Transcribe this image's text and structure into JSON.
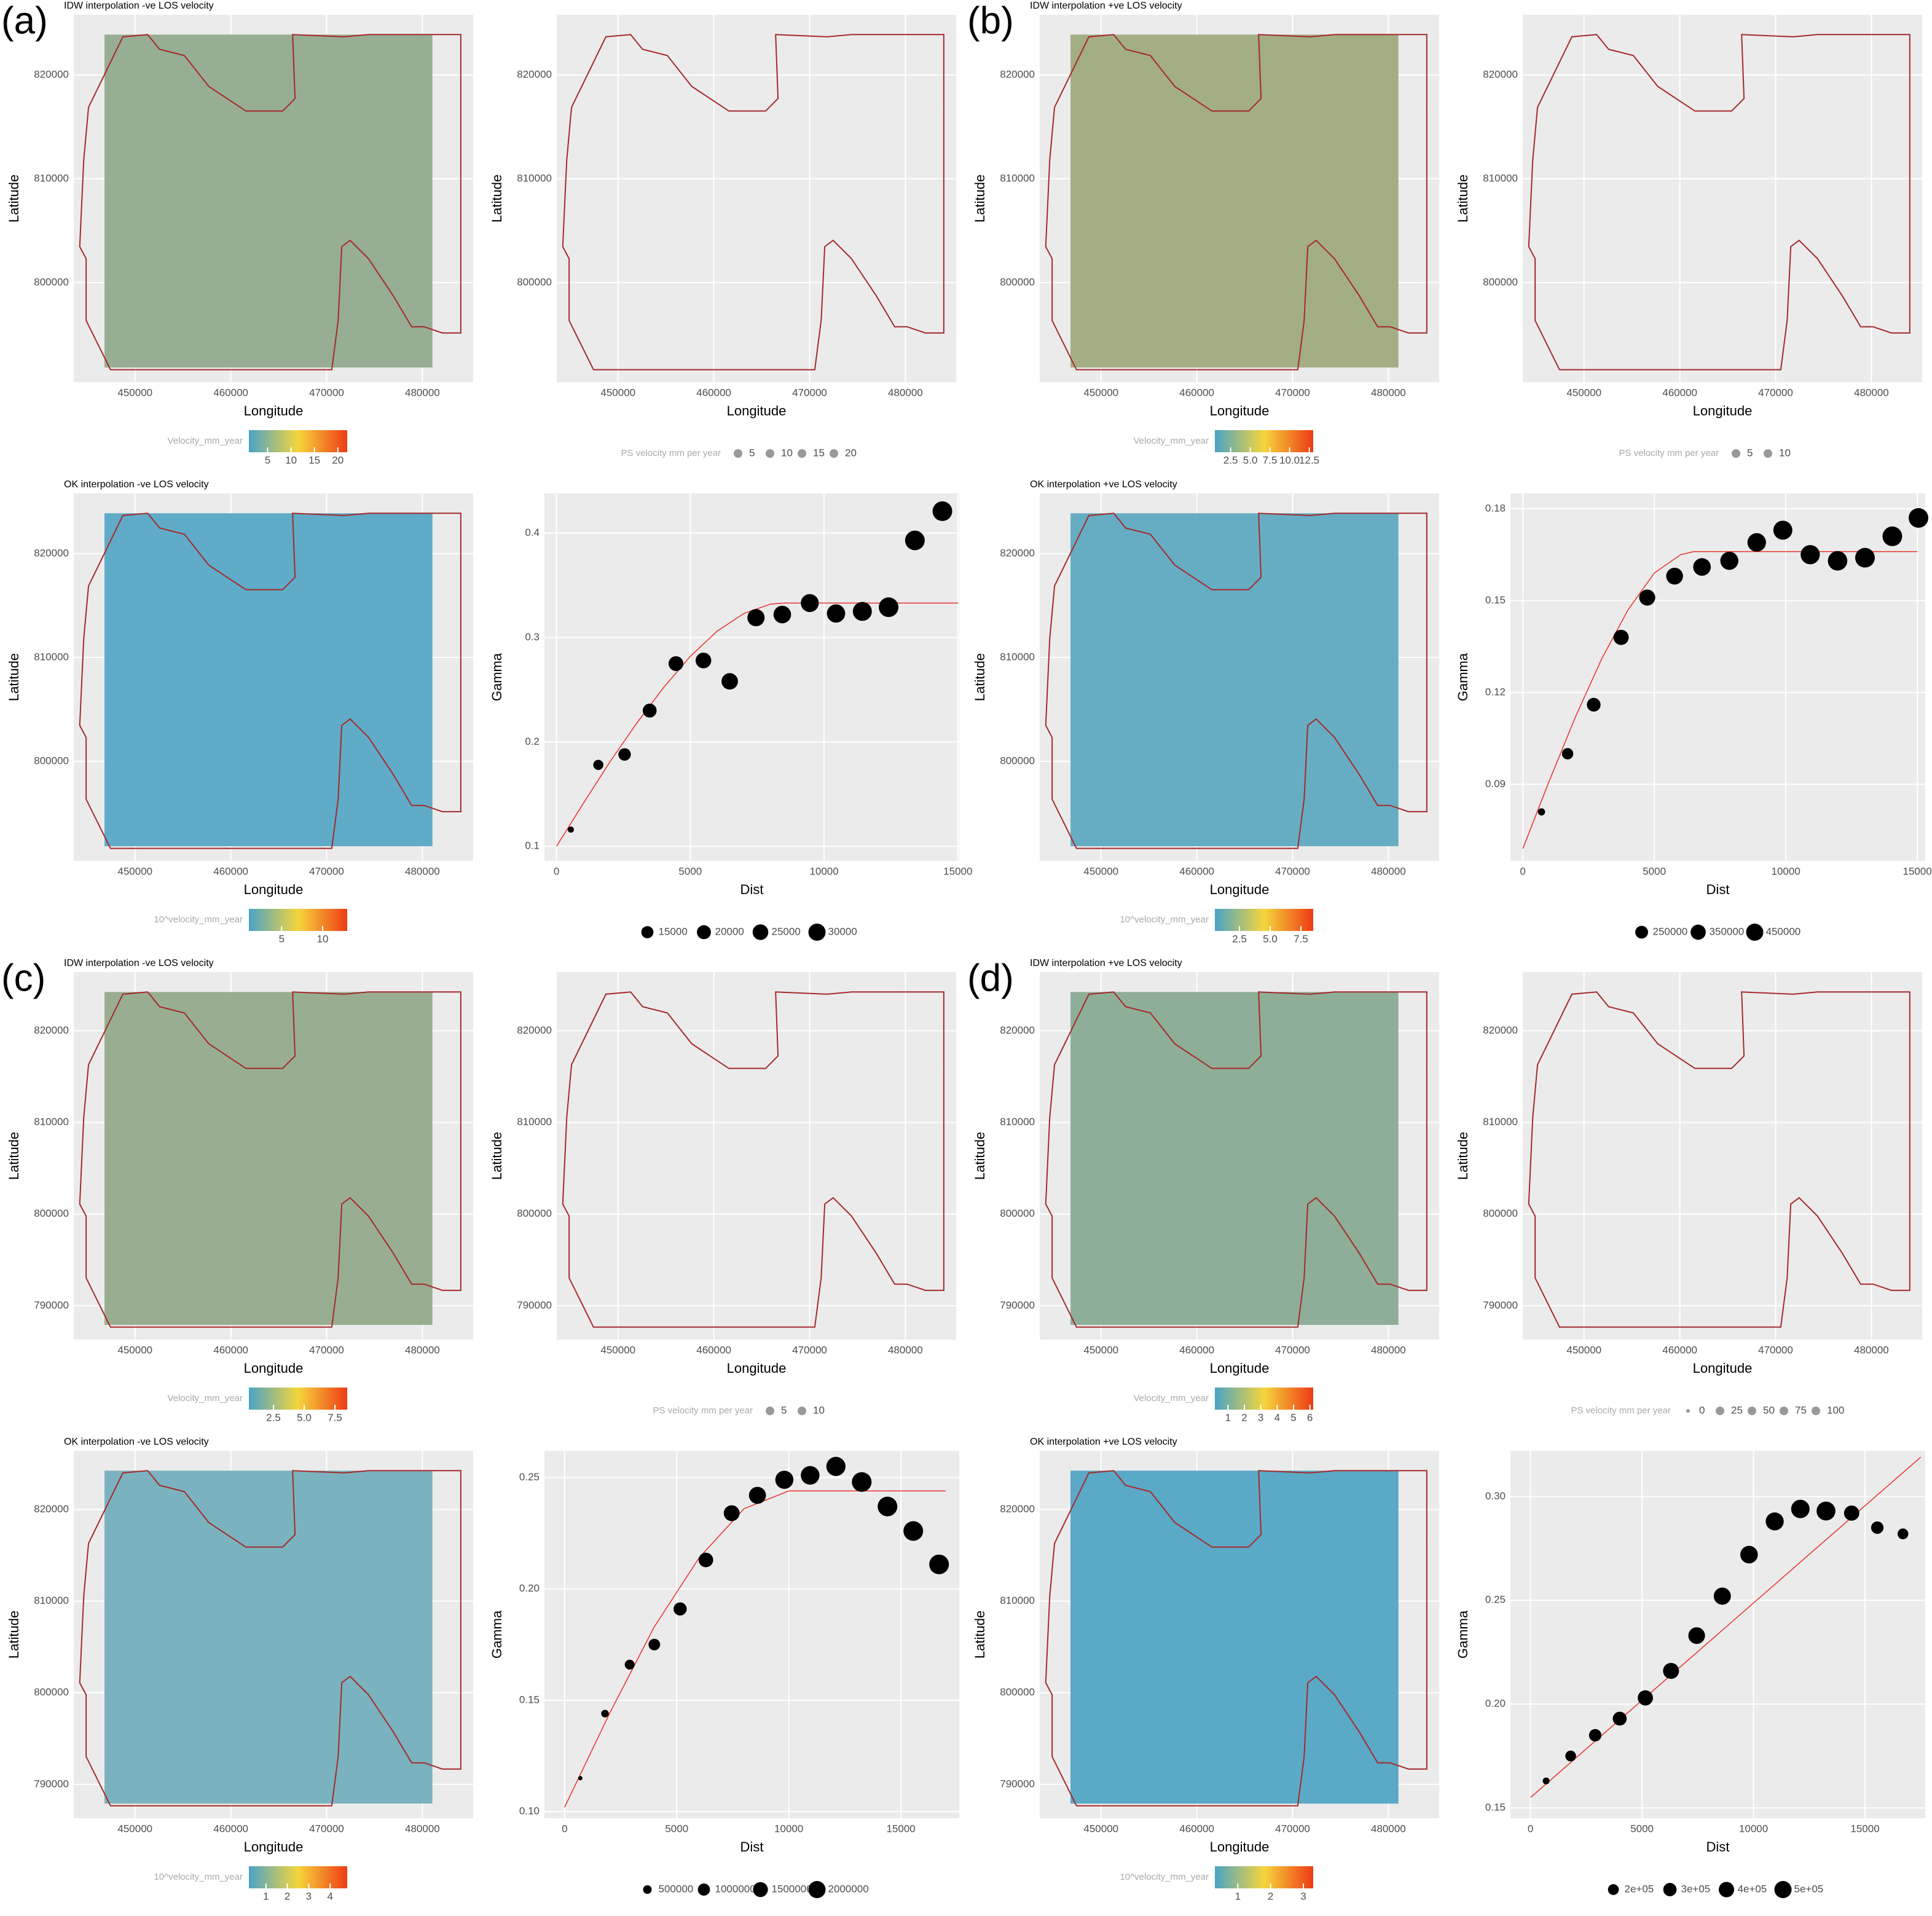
{
  "panel_labels": [
    "(a)",
    "(b)",
    "(c)",
    "(d)"
  ],
  "chart_data": [
    {
      "type": "map",
      "title": "IDW interpolation -ve LOS velocity",
      "x_label": "Longitude",
      "y_label": "Latitude",
      "xlim": [
        443600,
        485300
      ],
      "ylim": [
        790400,
        825800
      ],
      "xticks": [
        450000,
        460000,
        470000,
        480000
      ],
      "yticks": [
        800000,
        810000,
        820000
      ],
      "surface_color": "#97ae94",
      "boundary_color": "#a52a2a",
      "colorbar": {
        "title": "Velocity_mm_year",
        "lim": [
          1,
          22
        ],
        "ticks": [
          5,
          10,
          15,
          20
        ],
        "colors": [
          "#4aa3c8",
          "#f5d63c",
          "#ee3b14"
        ]
      }
    },
    {
      "type": "points_map",
      "x_label": "Longitude",
      "y_label": "Latitude",
      "xlim": [
        443600,
        485300
      ],
      "ylim": [
        790400,
        825800
      ],
      "xticks": [
        450000,
        460000,
        470000,
        480000
      ],
      "yticks": [
        800000,
        810000,
        820000
      ],
      "boundary_color": "#a52a2a",
      "size_legend": {
        "title": "PS velocity mm per year",
        "values": [
          5,
          10,
          15,
          20
        ],
        "color": "#999999"
      }
    },
    {
      "type": "map",
      "title": "OK interpolation -ve LOS velocity",
      "x_label": "Longitude",
      "y_label": "Latitude",
      "xlim": [
        443600,
        485300
      ],
      "ylim": [
        790400,
        825800
      ],
      "xticks": [
        450000,
        460000,
        470000,
        480000
      ],
      "yticks": [
        800000,
        810000,
        820000
      ],
      "surface_color": "#5fabc8",
      "boundary_color": "#a52a2a",
      "colorbar": {
        "title": "10^velocity_mm_year",
        "lim": [
          1,
          13
        ],
        "ticks": [
          5,
          10
        ],
        "colors": [
          "#4aa3c8",
          "#f5d63c",
          "#ee3b14"
        ]
      }
    },
    {
      "type": "scatter",
      "x_label": "Dist",
      "y_label": "Gamma",
      "xlim": [
        -450,
        15050
      ],
      "ylim": [
        0.086,
        0.438
      ],
      "xticks": [
        0,
        5000,
        10000,
        15000
      ],
      "yticks": [
        0.1,
        0.2,
        0.3,
        0.4
      ],
      "color": "#000000",
      "fit_color": "#e8312a",
      "x": [
        536,
        1563,
        2545,
        3482,
        4464,
        5491,
        6473,
        7455,
        8437,
        9464,
        10446,
        11429,
        12411,
        13393,
        14420
      ],
      "values": [
        0.116,
        0.178,
        0.188,
        0.23,
        0.275,
        0.278,
        0.258,
        0.319,
        0.322,
        0.333,
        0.323,
        0.325,
        0.329,
        0.393,
        0.421
      ],
      "sizes": [
        3000,
        8000,
        12000,
        15000,
        17000,
        19000,
        21000,
        23000,
        24000,
        25000,
        26000,
        28000,
        30000,
        30000,
        30000
      ],
      "fit": {
        "x": [
          0,
          1000,
          2000,
          3000,
          4000,
          5000,
          6000,
          7000,
          8000,
          8500,
          15000
        ],
        "y": [
          0.1,
          0.141,
          0.181,
          0.218,
          0.252,
          0.282,
          0.306,
          0.323,
          0.332,
          0.333,
          0.333
        ]
      },
      "size_legend": {
        "values": [
          15000,
          20000,
          25000,
          30000
        ],
        "color": "#000000"
      }
    },
    {
      "type": "map",
      "title": "IDW interpolation +ve LOS velocity",
      "x_label": "Longitude",
      "y_label": "Latitude",
      "xlim": [
        443600,
        485300
      ],
      "ylim": [
        790400,
        825800
      ],
      "xticks": [
        450000,
        460000,
        470000,
        480000
      ],
      "yticks": [
        800000,
        810000,
        820000
      ],
      "surface_color": "#a3ae85",
      "boundary_color": "#a52a2a",
      "colorbar": {
        "title": "Velocity_mm_year",
        "lim": [
          0.5,
          13
        ],
        "ticks": [
          2.5,
          {
            "value": 5,
            "label": "5.0"
          },
          7.5,
          {
            "value": 10,
            "label": "10.0"
          },
          12.5
        ],
        "colors": [
          "#4aa3c8",
          "#f5d63c",
          "#ee3b14"
        ]
      }
    },
    {
      "type": "points_map",
      "x_label": "Longitude",
      "y_label": "Latitude",
      "xlim": [
        443600,
        485300
      ],
      "ylim": [
        790400,
        825800
      ],
      "xticks": [
        450000,
        460000,
        470000,
        480000
      ],
      "yticks": [
        800000,
        810000,
        820000
      ],
      "boundary_color": "#a52a2a",
      "size_legend": {
        "title": "PS velocity mm per year",
        "values": [
          5,
          10
        ],
        "color": "#999999"
      }
    },
    {
      "type": "map",
      "title": "OK interpolation +ve LOS velocity",
      "x_label": "Longitude",
      "y_label": "Latitude",
      "xlim": [
        443600,
        485300
      ],
      "ylim": [
        790400,
        825800
      ],
      "xticks": [
        450000,
        460000,
        470000,
        480000
      ],
      "yticks": [
        800000,
        810000,
        820000
      ],
      "surface_color": "#66adc4",
      "boundary_color": "#a52a2a",
      "colorbar": {
        "title": "10^velocity_mm_year",
        "lim": [
          0.5,
          8.5
        ],
        "ticks": [
          2.5,
          {
            "value": 5,
            "label": "5.0"
          },
          7.5
        ],
        "colors": [
          "#4aa3c8",
          "#f5d63c",
          "#ee3b14"
        ]
      }
    },
    {
      "type": "scatter",
      "x_label": "Dist",
      "y_label": "Gamma",
      "xlim": [
        -470,
        15300
      ],
      "ylim": [
        0.065,
        0.185
      ],
      "xticks": [
        0,
        5000,
        10000,
        15000
      ],
      "yticks": [
        0.09,
        0.12,
        0.15,
        0.18
      ],
      "color": "#000000",
      "fit_color": "#e8312a",
      "x": [
        710,
        1703,
        2696,
        3737,
        4730,
        5771,
        6812,
        7852,
        8893,
        9886,
        10927,
        11968,
        13009,
        14049,
        15043
      ],
      "values": [
        0.081,
        0.1,
        0.116,
        0.138,
        0.151,
        0.158,
        0.161,
        0.163,
        0.169,
        0.173,
        0.165,
        0.163,
        0.164,
        0.171,
        0.177
      ],
      "sizes": [
        60000,
        150000,
        220000,
        270000,
        300000,
        330000,
        360000,
        380000,
        400000,
        420000,
        430000,
        440000,
        450000,
        450000,
        450000
      ],
      "fit": {
        "x": [
          0,
          1000,
          2000,
          3000,
          4000,
          5000,
          6000,
          6500,
          15000
        ],
        "y": [
          0.069,
          0.091,
          0.112,
          0.131,
          0.147,
          0.159,
          0.165,
          0.166,
          0.166
        ]
      },
      "size_legend": {
        "values": [
          250000,
          350000,
          450000
        ],
        "color": "#000000"
      }
    },
    {
      "type": "map",
      "title": "IDW interpolation -ve LOS velocity",
      "x_label": "Longitude",
      "y_label": "Latitude",
      "xlim": [
        443600,
        485300
      ],
      "ylim": [
        786300,
        826400
      ],
      "xticks": [
        450000,
        460000,
        470000,
        480000
      ],
      "yticks": [
        790000,
        800000,
        810000,
        820000
      ],
      "surface_color": "#99ae90",
      "boundary_color": "#a52a2a",
      "colorbar": {
        "title": "Velocity_mm_year",
        "lim": [
          0.5,
          8.5
        ],
        "ticks": [
          2.5,
          {
            "value": 5,
            "label": "5.0"
          },
          7.5
        ],
        "colors": [
          "#4aa3c8",
          "#f5d63c",
          "#ee3b14"
        ]
      }
    },
    {
      "type": "points_map",
      "x_label": "Longitude",
      "y_label": "Latitude",
      "xlim": [
        443600,
        485300
      ],
      "ylim": [
        786300,
        826400
      ],
      "xticks": [
        450000,
        460000,
        470000,
        480000
      ],
      "yticks": [
        790000,
        800000,
        810000,
        820000
      ],
      "boundary_color": "#a52a2a",
      "size_legend": {
        "title": "PS velocity mm per year",
        "values": [
          5,
          10
        ],
        "color": "#999999"
      }
    },
    {
      "type": "map",
      "title": "OK interpolation -ve LOS velocity",
      "x_label": "Longitude",
      "y_label": "Latitude",
      "xlim": [
        443600,
        485300
      ],
      "ylim": [
        786300,
        826400
      ],
      "xticks": [
        450000,
        460000,
        470000,
        480000
      ],
      "yticks": [
        790000,
        800000,
        810000,
        820000
      ],
      "surface_color": "#7ab3bf",
      "boundary_color": "#a52a2a",
      "colorbar": {
        "title": "10^velocity_mm_year",
        "lim": [
          0.2,
          4.8
        ],
        "ticks": [
          1,
          2,
          3,
          4
        ],
        "colors": [
          "#4aa3c8",
          "#f5d63c",
          "#ee3b14"
        ]
      }
    },
    {
      "type": "scatter",
      "x_label": "Dist",
      "y_label": "Gamma",
      "xlim": [
        -900,
        17600
      ],
      "ylim": [
        0.097,
        0.262
      ],
      "xticks": [
        0,
        5000,
        10000,
        15000
      ],
      "yticks": [
        {
          "value": 0.1,
          "label": "0.10"
        },
        0.15,
        {
          "value": 0.2,
          "label": "0.20"
        },
        0.25
      ],
      "color": "#000000",
      "fit_color": "#e8312a",
      "x": [
        700,
        1800,
        2900,
        4000,
        5150,
        6300,
        7450,
        8600,
        9800,
        10950,
        12100,
        13250,
        14400,
        15550,
        16700
      ],
      "values": [
        0.115,
        0.144,
        0.166,
        0.175,
        0.191,
        0.213,
        0.234,
        0.242,
        0.249,
        0.251,
        0.255,
        0.248,
        0.237,
        0.226,
        0.211
      ],
      "sizes": [
        100000,
        300000,
        500000,
        700000,
        900000,
        1100000,
        1300000,
        1500000,
        1700000,
        1800000,
        1900000,
        2000000,
        2000000,
        2000000,
        2000000
      ],
      "fit": {
        "x": [
          0,
          2000,
          4000,
          6000,
          8000,
          10000,
          17000
        ],
        "y": [
          0.102,
          0.144,
          0.183,
          0.214,
          0.236,
          0.244,
          0.244
        ]
      },
      "size_legend": {
        "values": [
          500000,
          1000000,
          1500000,
          2000000
        ],
        "color": "#000000"
      }
    },
    {
      "type": "map",
      "title": "IDW interpolation +ve LOS velocity",
      "x_label": "Longitude",
      "y_label": "Latitude",
      "xlim": [
        443600,
        485300
      ],
      "ylim": [
        786300,
        826400
      ],
      "xticks": [
        450000,
        460000,
        470000,
        480000
      ],
      "yticks": [
        790000,
        800000,
        810000,
        820000
      ],
      "surface_color": "#8fae98",
      "boundary_color": "#a52a2a",
      "colorbar": {
        "title": "Velocity_mm_year",
        "lim": [
          0.2,
          6.2
        ],
        "ticks": [
          1,
          2,
          3,
          4,
          5,
          6
        ],
        "colors": [
          "#4aa3c8",
          "#f5d63c",
          "#ee3b14"
        ]
      }
    },
    {
      "type": "points_map",
      "x_label": "Longitude",
      "y_label": "Latitude",
      "xlim": [
        443600,
        485300
      ],
      "ylim": [
        786300,
        826400
      ],
      "xticks": [
        450000,
        460000,
        470000,
        480000
      ],
      "yticks": [
        790000,
        800000,
        810000,
        820000
      ],
      "boundary_color": "#a52a2a",
      "size_legend": {
        "title": "PS velocity mm per year",
        "values": [
          0,
          25,
          50,
          75,
          100
        ],
        "color": "#999999"
      }
    },
    {
      "type": "map",
      "title": "OK interpolation +ve LOS velocity",
      "x_label": "Longitude",
      "y_label": "Latitude",
      "xlim": [
        443600,
        485300
      ],
      "ylim": [
        786300,
        826400
      ],
      "xticks": [
        450000,
        460000,
        470000,
        480000
      ],
      "yticks": [
        790000,
        800000,
        810000,
        820000
      ],
      "surface_color": "#5aa9c6",
      "boundary_color": "#a52a2a",
      "colorbar": {
        "title": "10^velocity_mm_year",
        "lim": [
          0.3,
          3.3
        ],
        "ticks": [
          1,
          2,
          3
        ],
        "colors": [
          "#4aa3c8",
          "#f5d63c",
          "#ee3b14"
        ]
      }
    },
    {
      "type": "scatter",
      "x_label": "Dist",
      "y_label": "Gamma",
      "xlim": [
        -900,
        17700
      ],
      "ylim": [
        0.145,
        0.322
      ],
      "xticks": [
        0,
        5000,
        10000,
        15000
      ],
      "yticks": [
        0.15,
        {
          "value": 0.2,
          "label": "0.20"
        },
        0.25,
        {
          "value": 0.3,
          "label": "0.30"
        }
      ],
      "color": "#000000",
      "fit_color": "#e8312a",
      "x": [
        700,
        1800,
        2900,
        4000,
        5150,
        6300,
        7450,
        8600,
        9800,
        10950,
        12100,
        13250,
        14400,
        15550,
        16700
      ],
      "values": [
        0.163,
        0.175,
        0.185,
        0.193,
        0.203,
        0.216,
        0.233,
        0.252,
        0.272,
        0.288,
        0.294,
        0.293,
        0.292,
        0.285,
        0.282
      ],
      "sizes": [
        60000,
        150000,
        200000,
        250000,
        300000,
        330000,
        360000,
        380000,
        400000,
        420000,
        440000,
        460000,
        300000,
        200000,
        150000
      ],
      "fit": {
        "x": [
          0,
          17500
        ],
        "y": [
          0.155,
          0.319
        ]
      },
      "size_legend": {
        "values": [
          {
            "value": 200000,
            "label": "2e+05"
          },
          {
            "value": 300000,
            "label": "3e+05"
          },
          {
            "value": 400000,
            "label": "4e+05"
          },
          {
            "value": 500000,
            "label": "5e+05"
          }
        ],
        "color": "#000000"
      }
    }
  ]
}
